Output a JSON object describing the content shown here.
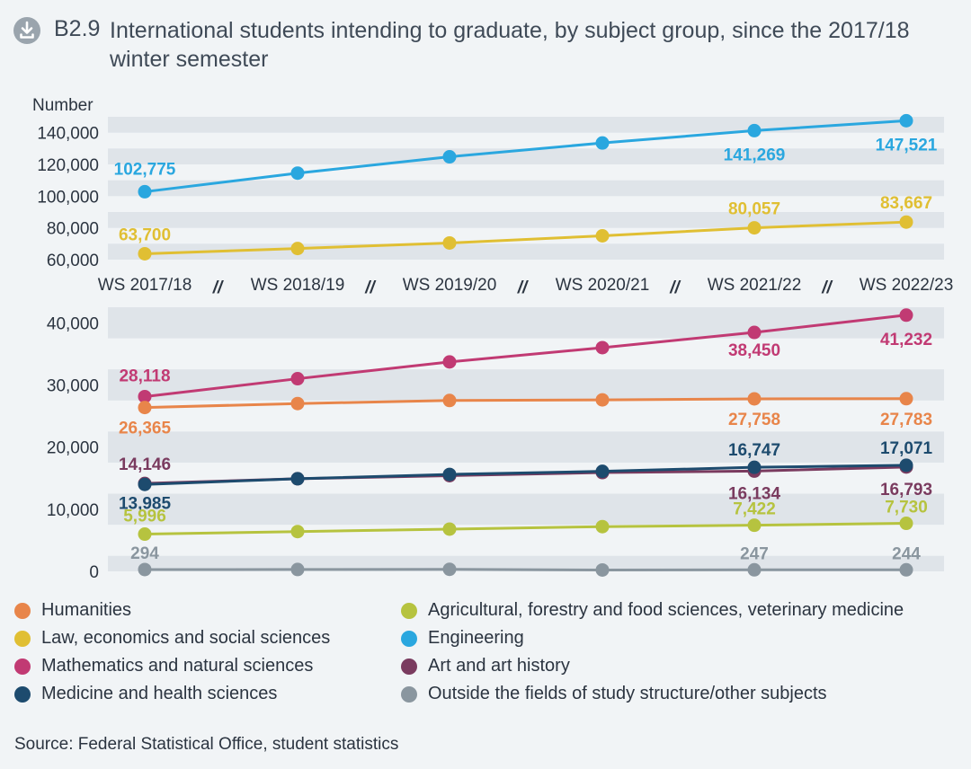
{
  "header": {
    "number": "B2.9",
    "title": "International students intending to graduate, by subject group, since the 2017/18 winter semester",
    "icon": "download-icon"
  },
  "chart_data": {
    "type": "line",
    "title": "International students intending to graduate, by subject group, since the 2017/18 winter semester",
    "ylabel": "Number",
    "categories": [
      "WS 2017/18",
      "WS 2018/19",
      "WS 2019/20",
      "WS 2020/21",
      "WS 2021/22",
      "WS 2022/23"
    ],
    "axis_break": "//",
    "panels": [
      {
        "ylim": [
          60000,
          150000
        ],
        "yticks": [
          "60,000",
          "80,000",
          "100,000",
          "120,000",
          "140,000"
        ],
        "series": [
          {
            "name": "Engineering",
            "color": "#2aa7df",
            "values": [
              102775,
              114500,
              124800,
              133500,
              141269,
              147521
            ],
            "labels": [
              {
                "i": 0,
                "text": "102,775"
              },
              {
                "i": 4,
                "text": "141,269"
              },
              {
                "i": 5,
                "text": "147,521"
              }
            ]
          },
          {
            "name": "Law, economics and social sciences",
            "color": "#e0bf33",
            "values": [
              63700,
              67000,
              70500,
              75000,
              80057,
              83667
            ],
            "labels": [
              {
                "i": 0,
                "text": "63,700"
              },
              {
                "i": 4,
                "text": "80,057"
              },
              {
                "i": 5,
                "text": "83,667"
              }
            ]
          }
        ]
      },
      {
        "ylim": [
          0,
          42500
        ],
        "yticks": [
          "0",
          "10,000",
          "20,000",
          "30,000",
          "40,000"
        ],
        "series": [
          {
            "name": "Mathematics and natural sciences",
            "color": "#c13a73",
            "values": [
              28118,
              31000,
              33700,
              36000,
              38450,
              41232
            ],
            "labels": [
              {
                "i": 0,
                "text": "28,118"
              },
              {
                "i": 4,
                "text": "38,450"
              },
              {
                "i": 5,
                "text": "41,232"
              }
            ]
          },
          {
            "name": "Humanities",
            "color": "#e8854a",
            "values": [
              26365,
              27000,
              27500,
              27600,
              27758,
              27783
            ],
            "labels": [
              {
                "i": 0,
                "text": "26,365"
              },
              {
                "i": 4,
                "text": "27,758"
              },
              {
                "i": 5,
                "text": "27,783"
              }
            ]
          },
          {
            "name": "Art and art history",
            "color": "#7a3b5f",
            "values": [
              14146,
              14900,
              15400,
              15900,
              16134,
              16793
            ],
            "labels": [
              {
                "i": 0,
                "text": "14,146"
              },
              {
                "i": 4,
                "text": "16,134"
              },
              {
                "i": 5,
                "text": "16,793"
              }
            ]
          },
          {
            "name": "Medicine and health sciences",
            "color": "#1d4b6e",
            "values": [
              13985,
              14900,
              15600,
              16100,
              16747,
              17071
            ],
            "labels": [
              {
                "i": 0,
                "text": "13,985"
              },
              {
                "i": 4,
                "text": "16,747"
              },
              {
                "i": 5,
                "text": "17,071"
              }
            ]
          },
          {
            "name": "Agricultural, forestry and food sciences, veterinary medicine",
            "color": "#b6c33f",
            "values": [
              5996,
              6400,
              6800,
              7200,
              7422,
              7730
            ],
            "labels": [
              {
                "i": 0,
                "text": "5,996"
              },
              {
                "i": 4,
                "text": "7,422"
              },
              {
                "i": 5,
                "text": "7,730"
              }
            ]
          },
          {
            "name": "Outside the fields of study structure/other subjects",
            "color": "#8a969f",
            "values": [
              294,
              300,
              330,
              220,
              247,
              244
            ],
            "labels": [
              {
                "i": 0,
                "text": "294"
              },
              {
                "i": 4,
                "text": "247"
              },
              {
                "i": 5,
                "text": "244"
              }
            ]
          }
        ]
      }
    ]
  },
  "legend": [
    {
      "label": "Humanities",
      "color": "#e8854a"
    },
    {
      "label": "Law, economics and social sciences",
      "color": "#e0bf33"
    },
    {
      "label": "Mathematics and natural sciences",
      "color": "#c13a73"
    },
    {
      "label": "Medicine and health sciences",
      "color": "#1d4b6e"
    },
    {
      "label": "Agricultural, forestry and food sciences, veterinary medicine",
      "color": "#b6c33f"
    },
    {
      "label": "Engineering",
      "color": "#2aa7df"
    },
    {
      "label": "Art and art history",
      "color": "#7a3b5f"
    },
    {
      "label": "Outside the fields of study structure/other subjects",
      "color": "#8a969f"
    }
  ],
  "source": "Source: Federal Statistical Office, student statistics"
}
